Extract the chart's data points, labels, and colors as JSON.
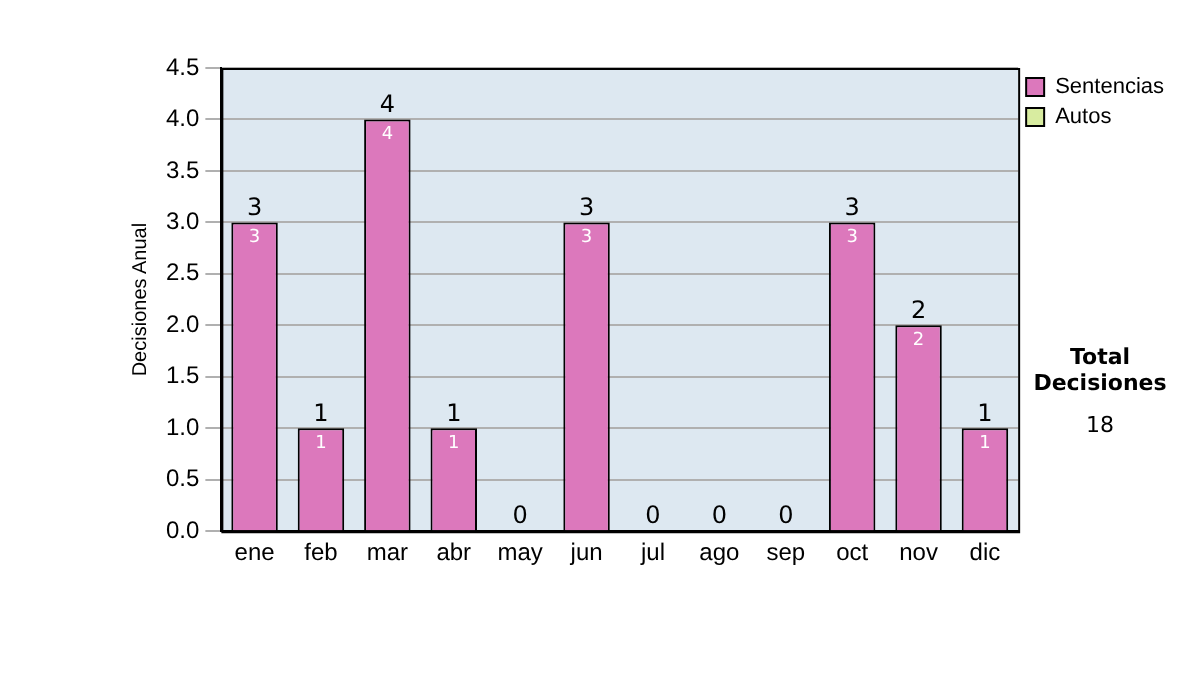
{
  "chart_data": {
    "type": "bar",
    "ylabel": "Decisiones Anual",
    "categories": [
      "ene",
      "feb",
      "mar",
      "abr",
      "may",
      "jun",
      "jul",
      "ago",
      "sep",
      "oct",
      "nov",
      "dic"
    ],
    "series": [
      {
        "name": "Sentencias",
        "color": "#dc78bc",
        "values": [
          3,
          1,
          4,
          1,
          0,
          3,
          0,
          0,
          0,
          3,
          2,
          1
        ],
        "value_labels": [
          "3",
          "1",
          "4",
          "1",
          null,
          "3",
          null,
          null,
          null,
          "3",
          "2",
          "1"
        ]
      },
      {
        "name": "Autos",
        "color": "#d8eca0",
        "values": [
          0,
          0,
          0,
          0,
          0,
          0,
          0,
          0,
          0,
          0,
          0,
          0
        ]
      }
    ],
    "stacked": true,
    "totals": [
      "3",
      "1",
      "4",
      "1",
      "0",
      "3",
      "0",
      "0",
      "0",
      "3",
      "2",
      "1"
    ],
    "ylim": [
      0,
      4.5
    ],
    "yticks": [
      {
        "value": 0,
        "label": "0.0"
      },
      {
        "value": 0.5,
        "label": "0.5"
      },
      {
        "value": 1,
        "label": "1.0"
      },
      {
        "value": 1.5,
        "label": "1.5"
      },
      {
        "value": 2,
        "label": "2.0"
      },
      {
        "value": 2.5,
        "label": "2.5"
      },
      {
        "value": 3,
        "label": "3.0"
      },
      {
        "value": 3.5,
        "label": "3.5"
      },
      {
        "value": 4,
        "label": "4.0"
      },
      {
        "value": 4.5,
        "label": "4.5"
      }
    ],
    "grid": "y",
    "legend": "right",
    "annotations": [
      "Total Decisiones",
      "18"
    ]
  }
}
